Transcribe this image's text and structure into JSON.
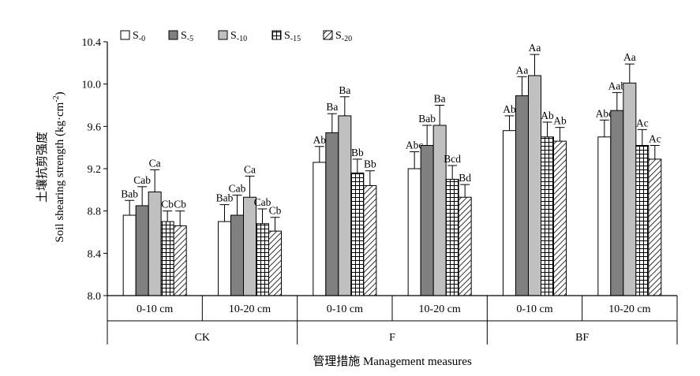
{
  "chart_data": {
    "type": "bar",
    "ylabel_cn": "土壤抗剪强度",
    "ylabel_en_main": "Soil shearing strength (kg·cm",
    "ylabel_en_sup": "-2",
    "ylabel_en_tail": ")",
    "xlabel": "管理措施 Management measures",
    "ylim": [
      8.0,
      10.4
    ],
    "yticks": [
      "8.0",
      "8.4",
      "8.8",
      "9.2",
      "9.6",
      "10.0",
      "10.4"
    ],
    "ytick_values": [
      8.0,
      8.4,
      8.8,
      9.2,
      9.6,
      10.0,
      10.4
    ],
    "series": [
      {
        "name": "S",
        "sub": "-0",
        "pattern": "white"
      },
      {
        "name": "S",
        "sub": "-5",
        "pattern": "dark"
      },
      {
        "name": "S",
        "sub": "-10",
        "pattern": "light"
      },
      {
        "name": "S",
        "sub": "-15",
        "pattern": "grid"
      },
      {
        "name": "S",
        "sub": "-20",
        "pattern": "hatch"
      }
    ],
    "groups": [
      {
        "measure": "CK",
        "depths": [
          {
            "depth": "0-10 cm",
            "values": [
              8.76,
              8.85,
              8.98,
              8.7,
              8.66
            ],
            "errors": [
              0.14,
              0.18,
              0.21,
              0.1,
              0.14
            ],
            "labels": [
              "Bab",
              "Cab",
              "Ca",
              "Cb",
              "Cb"
            ]
          },
          {
            "depth": "10-20 cm",
            "values": [
              8.7,
              8.76,
              8.93,
              8.68,
              8.61
            ],
            "errors": [
              0.16,
              0.19,
              0.2,
              0.14,
              0.13
            ],
            "labels": [
              "Bab",
              "Cab",
              "Ca",
              "Cab",
              "Cb"
            ]
          }
        ]
      },
      {
        "measure": "F",
        "depths": [
          {
            "depth": "0-10 cm",
            "values": [
              9.26,
              9.54,
              9.7,
              9.16,
              9.04
            ],
            "errors": [
              0.15,
              0.18,
              0.18,
              0.13,
              0.14
            ],
            "labels": [
              "Ab",
              "Ba",
              "Ba",
              "Bb",
              "Bb"
            ]
          },
          {
            "depth": "10-20 cm",
            "values": [
              9.2,
              9.42,
              9.61,
              9.1,
              8.93
            ],
            "errors": [
              0.16,
              0.19,
              0.19,
              0.13,
              0.12
            ],
            "labels": [
              "Abc",
              "Bab",
              "Ba",
              "Bcd",
              "Bd"
            ]
          }
        ]
      },
      {
        "measure": "BF",
        "depths": [
          {
            "depth": "0-10 cm",
            "values": [
              9.56,
              9.89,
              10.08,
              9.5,
              9.46
            ],
            "errors": [
              0.14,
              0.18,
              0.2,
              0.14,
              0.13
            ],
            "labels": [
              "Ab",
              "Aa",
              "Aa",
              "Ab",
              "Ab"
            ]
          },
          {
            "depth": "10-20 cm",
            "values": [
              9.5,
              9.75,
              10.01,
              9.42,
              9.29
            ],
            "errors": [
              0.16,
              0.17,
              0.18,
              0.15,
              0.13
            ],
            "labels": [
              "Abc",
              "Aab",
              "Aa",
              "Ac",
              "Ac"
            ]
          }
        ]
      }
    ]
  }
}
